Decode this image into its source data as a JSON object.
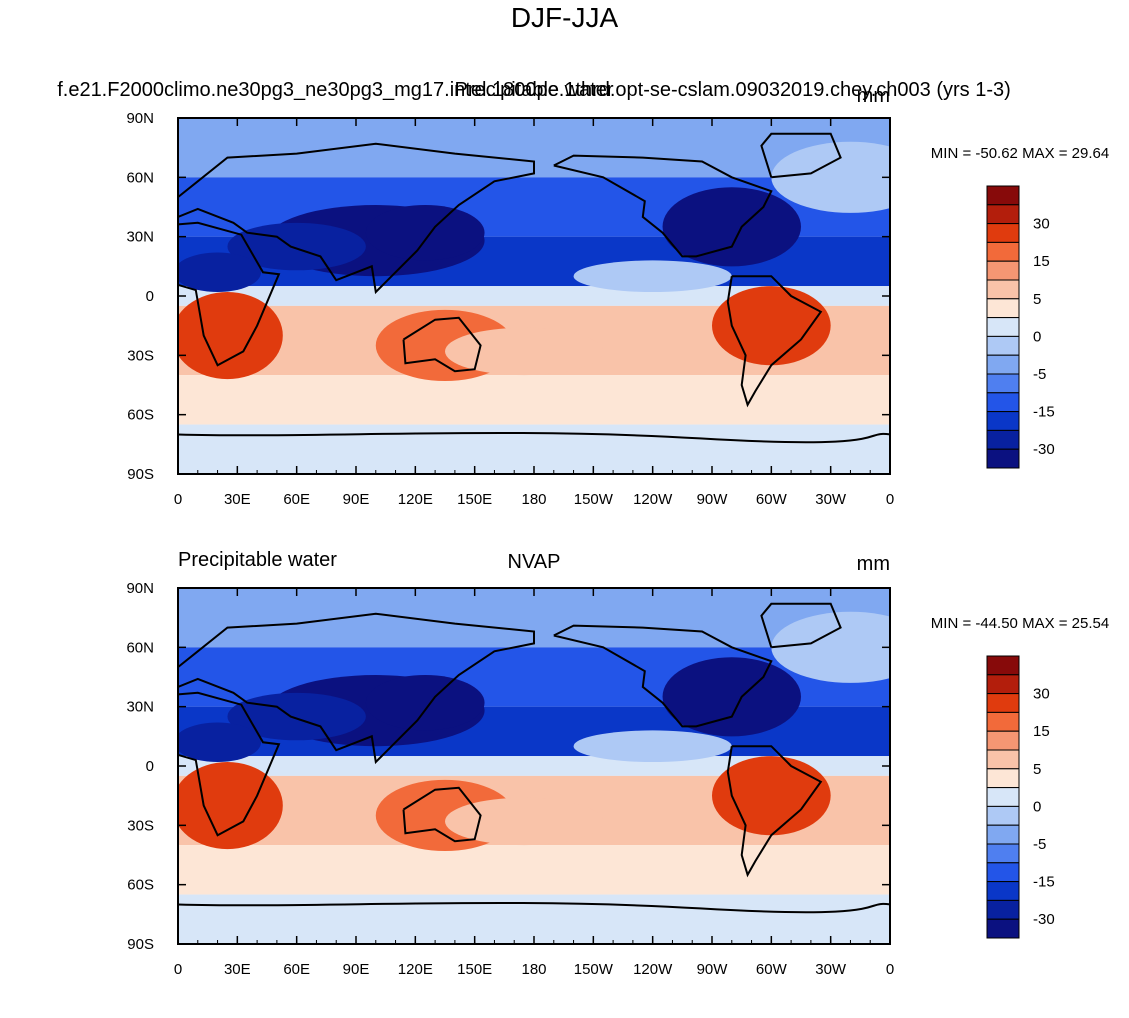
{
  "title": "DJF-JJA",
  "colorbar_labels": [
    "30",
    "15",
    "5",
    "0",
    "-5",
    "-15",
    "-30"
  ],
  "colorbar_colors": [
    "#870a0a",
    "#b31e0c",
    "#e03b0e",
    "#f26a3a",
    "#f59673",
    "#f9c3a9",
    "#fde6d6",
    "#d7e6f8",
    "#aec9f5",
    "#80a8f1",
    "#4f7ff0",
    "#2355e8",
    "#0a37c8",
    "#0821a0",
    "#0b1180"
  ],
  "x_ticks": [
    "0",
    "30E",
    "60E",
    "90E",
    "120E",
    "150E",
    "180",
    "150W",
    "120W",
    "90W",
    "60W",
    "30W",
    "0"
  ],
  "y_ticks": [
    "90N",
    "60N",
    "30N",
    "0",
    "30S",
    "60S",
    "90S"
  ],
  "chart_data": [
    {
      "type": "heatmap",
      "title": "f.e21.F2000climo.ne30pg3_ne30pg3_mg17.intel.1800pe.1thrd.opt-se-cslam.09032019.chey.ch003 (yrs 1-3)",
      "left_label": "Precipitable water",
      "right_label": "mm",
      "min_max_text": "MIN = -50.62  MAX =  29.64",
      "min": -50.62,
      "max": 29.64,
      "levels": [
        -40,
        -35,
        -30,
        -25,
        -20,
        -15,
        -10,
        -5,
        0,
        5,
        10,
        15,
        20,
        25,
        30,
        35
      ],
      "lon_range": [
        0,
        360
      ],
      "lat_range": [
        -90,
        90
      ],
      "zonal_bands": [
        {
          "lat": [
            60,
            90
          ],
          "value": -8
        },
        {
          "lat": [
            30,
            60
          ],
          "value": -18
        },
        {
          "lat": [
            5,
            30
          ],
          "value": -25
        },
        {
          "lat": [
            -5,
            5
          ],
          "value": 2
        },
        {
          "lat": [
            -40,
            -5
          ],
          "value": 12
        },
        {
          "lat": [
            -65,
            -40
          ],
          "value": 6
        },
        {
          "lat": [
            -90,
            -65
          ],
          "value": 4
        }
      ]
    },
    {
      "type": "heatmap",
      "title": "NVAP",
      "left_label": "Precipitable water",
      "right_label": "mm",
      "min_max_text": "MIN = -44.50  MAX =  25.54",
      "min": -44.5,
      "max": 25.54,
      "levels": [
        -40,
        -35,
        -30,
        -25,
        -20,
        -15,
        -10,
        -5,
        0,
        5,
        10,
        15,
        20,
        25,
        30,
        35
      ],
      "lon_range": [
        0,
        360
      ],
      "lat_range": [
        -90,
        90
      ],
      "zonal_bands": [
        {
          "lat": [
            60,
            90
          ],
          "value": -7
        },
        {
          "lat": [
            30,
            60
          ],
          "value": -17
        },
        {
          "lat": [
            5,
            30
          ],
          "value": -24
        },
        {
          "lat": [
            -5,
            5
          ],
          "value": 2
        },
        {
          "lat": [
            -40,
            -5
          ],
          "value": 11
        },
        {
          "lat": [
            -65,
            -40
          ],
          "value": 5
        },
        {
          "lat": [
            -90,
            -65
          ],
          "value": 4
        }
      ]
    }
  ]
}
